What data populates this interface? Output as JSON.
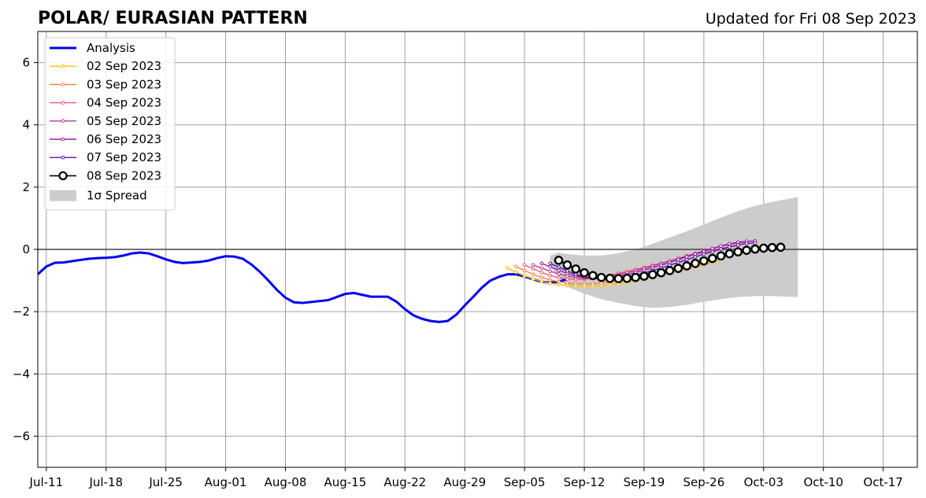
{
  "chart_data": {
    "type": "line",
    "title": "POLAR/ EURASIAN  PATTERN",
    "subtitle": "Updated for Fri 08 Sep 2023",
    "xlabel": "",
    "ylabel": "",
    "xlim": [
      "2023-07-10",
      "2023-10-21"
    ],
    "ylim": [
      -7,
      7
    ],
    "x_ticks": [
      "Jul-11",
      "Jul-18",
      "Jul-25",
      "Aug-01",
      "Aug-08",
      "Aug-15",
      "Aug-22",
      "Aug-29",
      "Sep-05",
      "Sep-12",
      "Sep-19",
      "Sep-26",
      "Oct-03",
      "Oct-10",
      "Oct-17"
    ],
    "x_tick_dates": [
      "2023-07-11",
      "2023-07-18",
      "2023-07-25",
      "2023-08-01",
      "2023-08-08",
      "2023-08-15",
      "2023-08-22",
      "2023-08-29",
      "2023-09-05",
      "2023-09-12",
      "2023-09-19",
      "2023-09-26",
      "2023-10-03",
      "2023-10-10",
      "2023-10-17"
    ],
    "y_ticks": [
      6,
      4,
      2,
      0,
      -2,
      -4,
      -6
    ],
    "y_tick_labels": [
      "6",
      "4",
      "2",
      "0",
      "−2",
      "−4",
      "−6"
    ],
    "grid": true,
    "zero_line": true,
    "legend_position": "top-left",
    "legend_spread_label": "1σ Spread",
    "colors": {
      "analysis": "#0000ee",
      "spread": "#cccccc",
      "grid": "#a0a0a0",
      "forecast_0908_marker_edge": "#000000",
      "forecast_0908_marker_fill": "#ffffff"
    },
    "analysis": {
      "name": "Analysis",
      "color": "#0000ee",
      "start_date": "2023-07-10",
      "values": [
        -0.8,
        -0.55,
        -0.43,
        -0.42,
        -0.38,
        -0.34,
        -0.3,
        -0.28,
        -0.27,
        -0.25,
        -0.2,
        -0.13,
        -0.1,
        -0.13,
        -0.22,
        -0.32,
        -0.4,
        -0.44,
        -0.42,
        -0.4,
        -0.36,
        -0.28,
        -0.22,
        -0.23,
        -0.3,
        -0.48,
        -0.72,
        -1.0,
        -1.3,
        -1.55,
        -1.7,
        -1.72,
        -1.69,
        -1.66,
        -1.63,
        -1.53,
        -1.43,
        -1.4,
        -1.46,
        -1.52,
        -1.52,
        -1.52,
        -1.68,
        -1.92,
        -2.12,
        -2.23,
        -2.3,
        -2.33,
        -2.3,
        -2.1,
        -1.8,
        -1.52,
        -1.23,
        -1.0,
        -0.88,
        -0.8,
        -0.8,
        -0.87,
        -0.96,
        -1.04,
        -1.07,
        -1.04,
        -0.95
      ]
    },
    "spread": {
      "dates": [
        "2023-09-08",
        "2023-09-09",
        "2023-09-10",
        "2023-09-12",
        "2023-09-14",
        "2023-09-16",
        "2023-09-18",
        "2023-09-20",
        "2023-09-22",
        "2023-09-24",
        "2023-09-26",
        "2023-09-28",
        "2023-09-30",
        "2023-10-02",
        "2023-10-04",
        "2023-10-06",
        "2023-10-07"
      ],
      "upper": [
        -0.2,
        -0.1,
        -0.15,
        -0.2,
        -0.2,
        -0.12,
        0.0,
        0.18,
        0.38,
        0.58,
        0.8,
        1.02,
        1.23,
        1.4,
        1.53,
        1.63,
        1.68
      ],
      "lower": [
        -0.55,
        -0.9,
        -1.2,
        -1.42,
        -1.6,
        -1.72,
        -1.82,
        -1.88,
        -1.85,
        -1.78,
        -1.68,
        -1.6,
        -1.53,
        -1.5,
        -1.5,
        -1.52,
        -1.53
      ]
    },
    "series": [
      {
        "name": "02 Sep 2023",
        "color": "#ffc000",
        "start_date": "2023-09-03",
        "values": [
          -0.6,
          -0.73,
          -0.85,
          -0.95,
          -1.03,
          -1.09,
          -1.13,
          -1.16,
          -1.18,
          -1.19,
          -1.18,
          -1.16,
          -1.13,
          -1.1,
          -1.06,
          -1.01,
          -0.95,
          -0.89,
          -0.83,
          -0.77,
          -0.7,
          -0.63,
          -0.56,
          -0.49,
          -0.42,
          -0.36
        ]
      },
      {
        "name": "03 Sep 2023",
        "color": "#f4813f",
        "start_date": "2023-09-04",
        "values": [
          -0.55,
          -0.68,
          -0.8,
          -0.9,
          -0.98,
          -1.04,
          -1.08,
          -1.1,
          -1.11,
          -1.1,
          -1.08,
          -1.05,
          -1.01,
          -0.96,
          -0.9,
          -0.84,
          -0.78,
          -0.71,
          -0.64,
          -0.57,
          -0.5,
          -0.43,
          -0.36,
          -0.3,
          -0.24,
          -0.18
        ]
      },
      {
        "name": "04 Sep 2023",
        "color": "#e35e6a",
        "start_date": "2023-09-05",
        "values": [
          -0.5,
          -0.62,
          -0.74,
          -0.84,
          -0.91,
          -0.95,
          -0.97,
          -0.96,
          -0.93,
          -0.88,
          -0.83,
          -0.77,
          -0.71,
          -0.65,
          -0.58,
          -0.51,
          -0.44,
          -0.37,
          -0.3,
          -0.23,
          -0.16,
          -0.09,
          -0.03,
          0.03,
          0.08,
          0.12
        ]
      },
      {
        "name": "05 Sep 2023",
        "color": "#b73a8f",
        "start_date": "2023-09-06",
        "values": [
          -0.5,
          -0.6,
          -0.7,
          -0.79,
          -0.86,
          -0.9,
          -0.92,
          -0.92,
          -0.9,
          -0.86,
          -0.81,
          -0.75,
          -0.68,
          -0.61,
          -0.53,
          -0.45,
          -0.37,
          -0.29,
          -0.21,
          -0.13,
          -0.05,
          0.03,
          0.1,
          0.16,
          0.21,
          0.24
        ]
      },
      {
        "name": "06 Sep 2023",
        "color": "#9a1ca6",
        "start_date": "2023-09-07",
        "values": [
          -0.45,
          -0.56,
          -0.67,
          -0.77,
          -0.85,
          -0.9,
          -0.93,
          -0.93,
          -0.91,
          -0.87,
          -0.81,
          -0.74,
          -0.67,
          -0.59,
          -0.51,
          -0.42,
          -0.33,
          -0.24,
          -0.15,
          -0.06,
          0.03,
          0.11,
          0.18,
          0.23,
          0.26,
          0.27
        ]
      },
      {
        "name": "07 Sep 2023",
        "color": "#5b10a8",
        "start_date": "2023-09-08",
        "values": [
          -0.45,
          -0.57,
          -0.69,
          -0.8,
          -0.88,
          -0.93,
          -0.95,
          -0.95,
          -0.93,
          -0.89,
          -0.83,
          -0.76,
          -0.68,
          -0.6,
          -0.51,
          -0.42,
          -0.33,
          -0.24,
          -0.15,
          -0.07,
          0.01,
          0.08,
          0.14,
          0.19,
          0.21
        ]
      },
      {
        "name": "08 Sep 2023",
        "color": "#000000",
        "start_date": "2023-09-09",
        "values": [
          -0.35,
          -0.5,
          -0.63,
          -0.75,
          -0.84,
          -0.9,
          -0.93,
          -0.94,
          -0.93,
          -0.9,
          -0.86,
          -0.81,
          -0.75,
          -0.68,
          -0.61,
          -0.53,
          -0.45,
          -0.37,
          -0.29,
          -0.21,
          -0.14,
          -0.08,
          -0.03,
          0.01,
          0.04,
          0.06,
          0.07
        ]
      }
    ]
  }
}
